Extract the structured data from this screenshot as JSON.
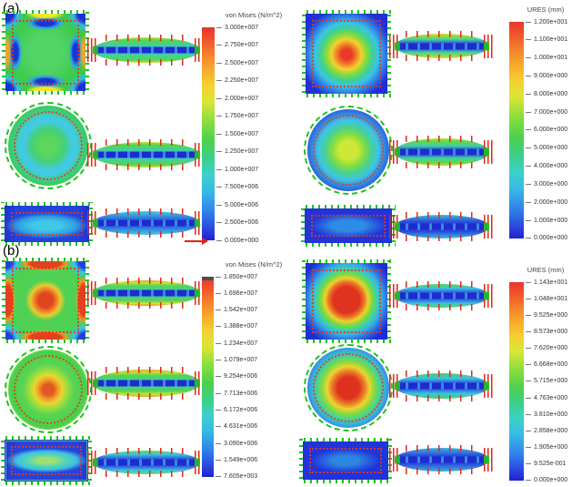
{
  "figure": {
    "panels": [
      {
        "label": "(a)",
        "left_legend": {
          "title": "von Mises (N/m^2)",
          "values": [
            "3.000e+007",
            "2.750e+007",
            "2.500e+007",
            "2.250e+007",
            "2.000e+007",
            "1.750e+007",
            "1.500e+007",
            "1.250e+007",
            "1.000e+007",
            "7.500e+006",
            "5.000e+006",
            "2.500e+006",
            "0.000e+000"
          ]
        },
        "right_legend": {
          "title": "URES (mm)",
          "values": [
            "1.200e+001",
            "1.100e+001",
            "1.000e+001",
            "9.000e+000",
            "8.000e+000",
            "7.000e+000",
            "6.000e+000",
            "5.000e+000",
            "4.000e+000",
            "3.000e+000",
            "2.000e+000",
            "1.000e+000",
            "0.000e+000"
          ]
        }
      },
      {
        "label": "(b)",
        "left_legend": {
          "title": "von Mises (N/m^2)",
          "values": [
            "1.850e+007",
            "1.696e+007",
            "1.542e+007",
            "1.388e+007",
            "1.234e+007",
            "1.079e+007",
            "9.254e+006",
            "7.713e+006",
            "6.172e+006",
            "4.631e+006",
            "3.090e+006",
            "1.549e+006",
            "7.605e+003"
          ]
        },
        "right_legend": {
          "title": "URES (mm)",
          "values": [
            "1.143e+001",
            "1.048e+001",
            "9.525e+000",
            "8.573e+000",
            "7.620e+000",
            "6.668e+000",
            "5.715e+000",
            "4.763e+000",
            "3.810e+000",
            "2.858e+000",
            "1.905e+000",
            "9.525e-001",
            "0.000e+000"
          ]
        }
      }
    ],
    "colors": {
      "load_red": "#e02416",
      "restraint_green": "#1ec41e",
      "scale_top": "#e8342a",
      "scale_bottom": "#2020d0"
    }
  }
}
